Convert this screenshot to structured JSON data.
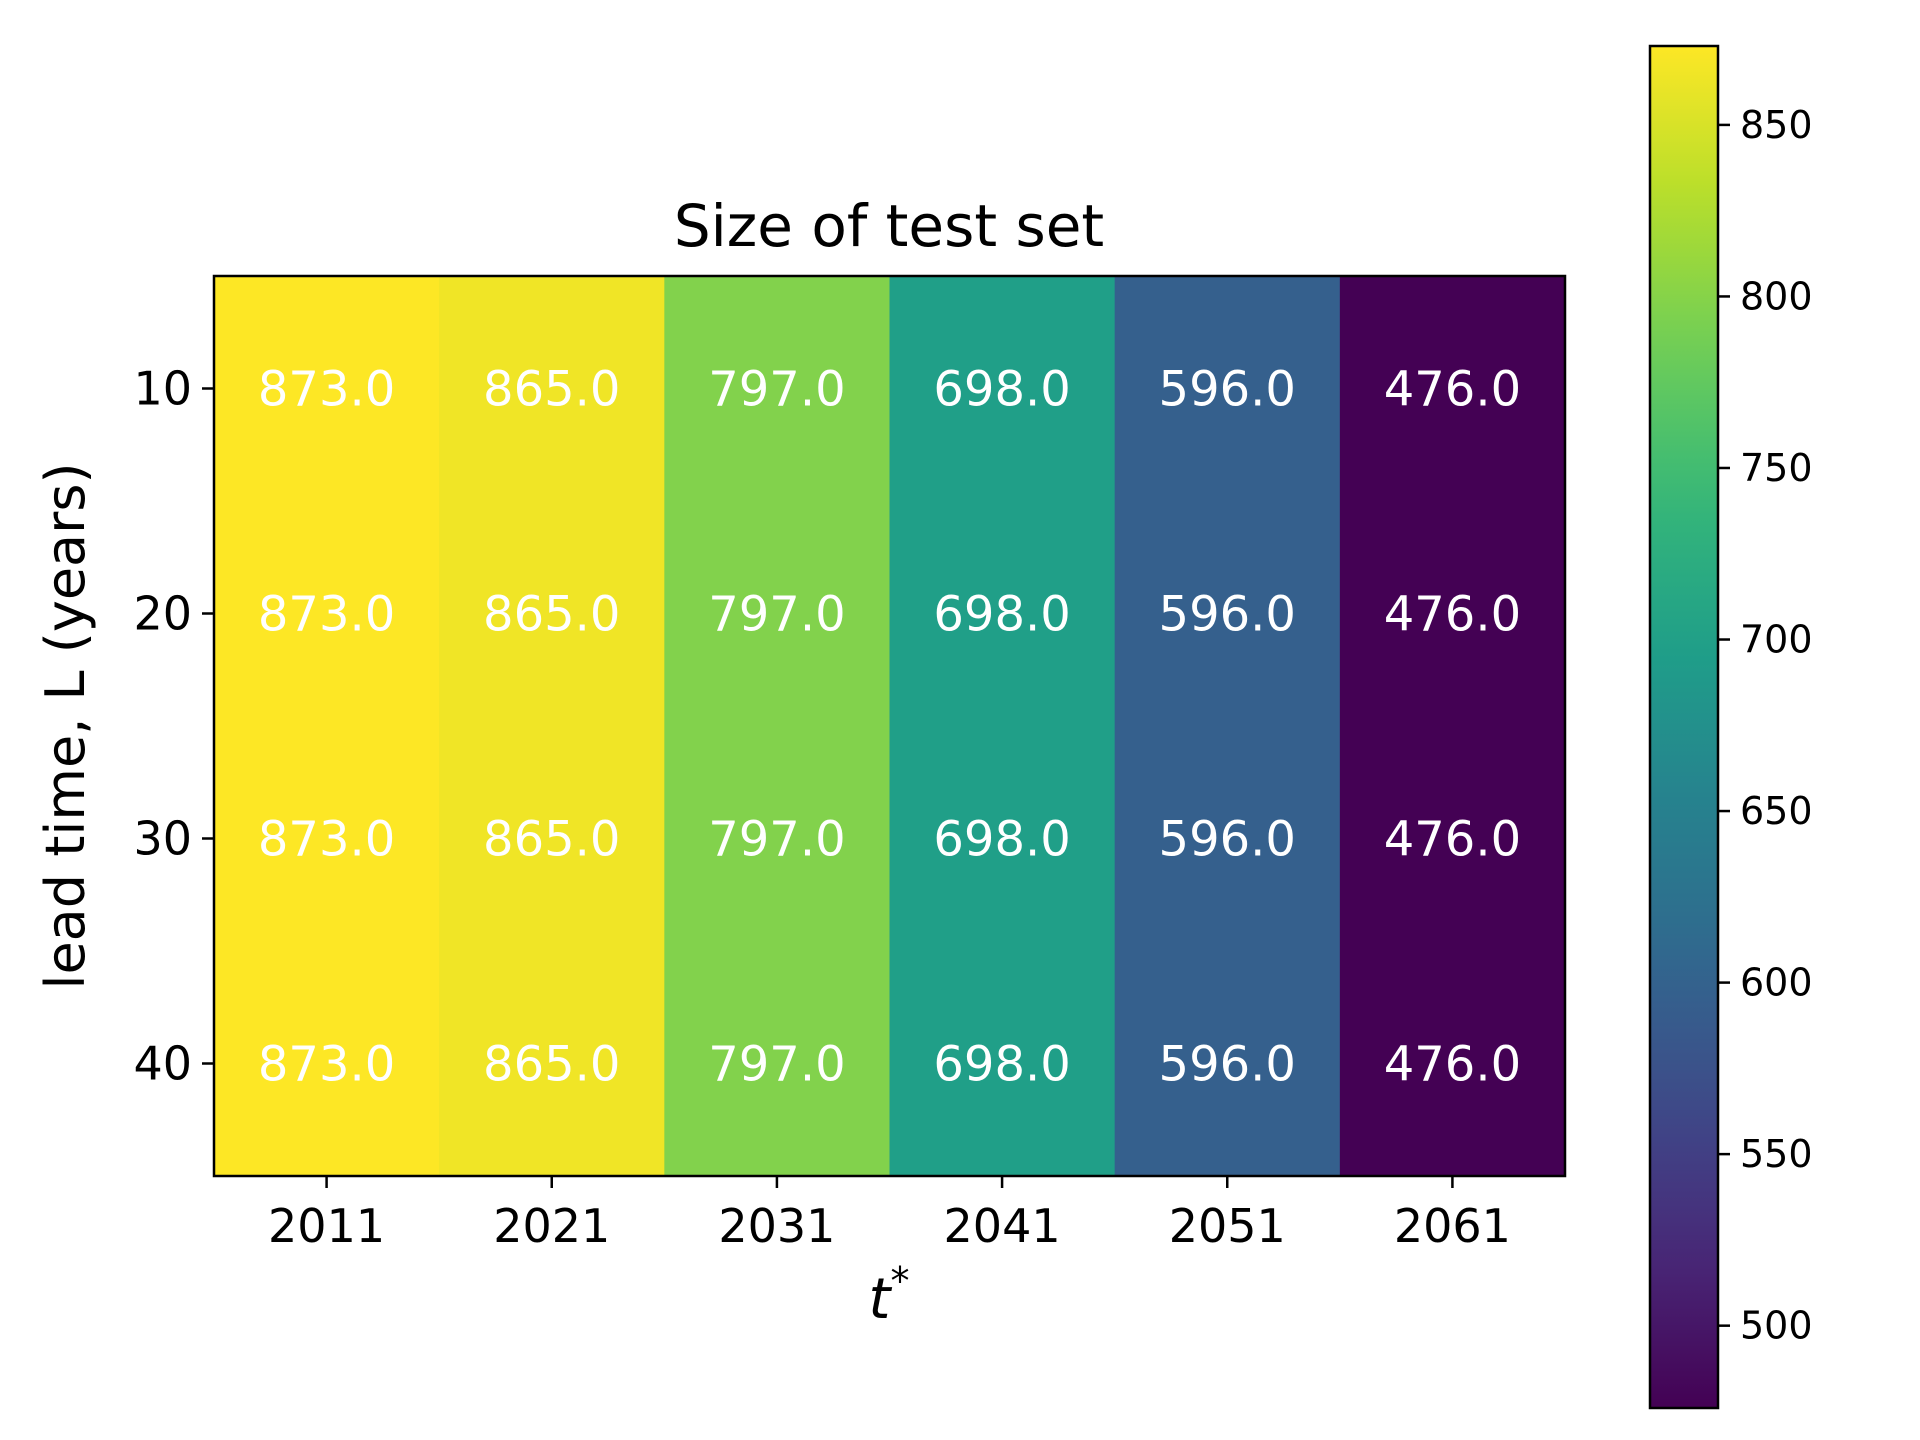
{
  "chart_data": {
    "type": "heatmap",
    "title": "Size of test set",
    "xlabel": "t",
    "xlabel_superscript": "*",
    "ylabel": "lead time, L (years)",
    "x_categories": [
      "2011",
      "2021",
      "2031",
      "2041",
      "2051",
      "2061"
    ],
    "y_categories": [
      "10",
      "20",
      "30",
      "40"
    ],
    "values": [
      [
        873.0,
        865.0,
        797.0,
        698.0,
        596.0,
        476.0
      ],
      [
        873.0,
        865.0,
        797.0,
        698.0,
        596.0,
        476.0
      ],
      [
        873.0,
        865.0,
        797.0,
        698.0,
        596.0,
        476.0
      ],
      [
        873.0,
        865.0,
        797.0,
        698.0,
        596.0,
        476.0
      ]
    ],
    "cell_label_color": "#ffffff",
    "colormap": "viridis",
    "colorbar": {
      "range": [
        476,
        873
      ],
      "ticks": [
        500,
        550,
        600,
        650,
        700,
        750,
        800,
        850
      ]
    },
    "grid": false,
    "legend": "none"
  }
}
